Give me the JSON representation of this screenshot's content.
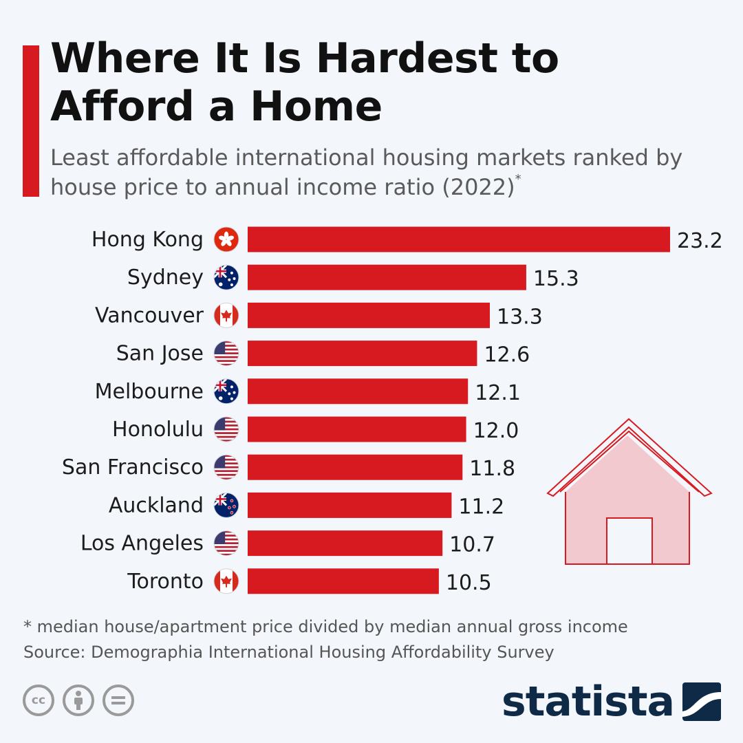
{
  "title": "Where It Is Hardest to Afford a Home",
  "subtitle": "Least affordable international housing markets ranked by house price to annual income ratio (2022)",
  "subtitle_marker": "*",
  "footnote": "* median house/apartment price divided by median annual gross income",
  "source": "Source: Demographia International Housing Affordability Survey",
  "brand": "statista",
  "colors": {
    "bar": "#d71920",
    "accent": "#d71920",
    "brand": "#0e2a47",
    "house_fill": "#f2c9cf"
  },
  "chart_data": {
    "type": "bar",
    "orientation": "horizontal",
    "title": "Where It Is Hardest to Afford a Home",
    "xlabel": "",
    "ylabel": "",
    "xlim": [
      0,
      23.2
    ],
    "grid": false,
    "categories": [
      "Hong Kong",
      "Sydney",
      "Vancouver",
      "San Jose",
      "Melbourne",
      "Honolulu",
      "San Francisco",
      "Auckland",
      "Los Angeles",
      "Toronto"
    ],
    "flags": [
      "hong-kong-flag",
      "australia-flag",
      "canada-flag",
      "usa-flag",
      "australia-flag",
      "usa-flag",
      "usa-flag",
      "new-zealand-flag",
      "usa-flag",
      "canada-flag"
    ],
    "values": [
      23.2,
      15.3,
      13.3,
      12.6,
      12.1,
      12.0,
      11.8,
      11.2,
      10.7,
      10.5
    ],
    "labels": [
      "23.2",
      "15.3",
      "13.3",
      "12.6",
      "12.1",
      "12.0",
      "11.8",
      "11.2",
      "10.7",
      "10.5"
    ]
  },
  "license_icons": [
    "cc-icon",
    "attribution-icon",
    "no-derivatives-icon"
  ]
}
